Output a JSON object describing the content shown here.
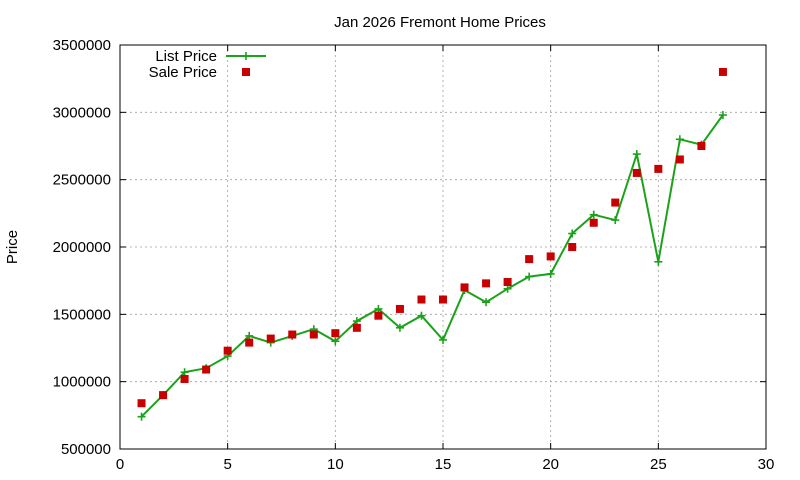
{
  "chart_data": {
    "type": "line",
    "title": "Jan 2026 Fremont Home Prices",
    "xlabel": "",
    "ylabel": "Price",
    "xlim": [
      0,
      30
    ],
    "ylim": [
      500000,
      3500000
    ],
    "xticks": [
      0,
      5,
      10,
      15,
      20,
      25,
      30
    ],
    "yticks": [
      500000,
      1000000,
      1500000,
      2000000,
      2500000,
      3000000,
      3500000
    ],
    "grid": true,
    "legend_position": "top-left",
    "series": [
      {
        "name": "List Price",
        "style": "line+cross",
        "color": "#1aa31a",
        "x": [
          1,
          2,
          3,
          4,
          5,
          6,
          7,
          8,
          9,
          10,
          11,
          12,
          13,
          14,
          15,
          16,
          17,
          18,
          19,
          20,
          21,
          22,
          23,
          24,
          25,
          26,
          27,
          28
        ],
        "y": [
          740000,
          900000,
          1070000,
          1100000,
          1190000,
          1340000,
          1290000,
          1340000,
          1390000,
          1300000,
          1450000,
          1540000,
          1400000,
          1490000,
          1310000,
          1680000,
          1590000,
          1690000,
          1780000,
          1800000,
          2100000,
          2240000,
          2200000,
          2690000,
          1890000,
          2800000,
          2760000,
          2980000
        ]
      },
      {
        "name": "Sale Price",
        "style": "square",
        "color": "#c80000",
        "x": [
          1,
          2,
          3,
          4,
          5,
          6,
          7,
          8,
          9,
          10,
          11,
          12,
          13,
          14,
          15,
          16,
          17,
          18,
          19,
          20,
          21,
          22,
          23,
          24,
          25,
          26,
          27,
          28
        ],
        "y": [
          840000,
          900000,
          1020000,
          1090000,
          1230000,
          1290000,
          1320000,
          1350000,
          1350000,
          1360000,
          1400000,
          1490000,
          1540000,
          1610000,
          1610000,
          1700000,
          1730000,
          1740000,
          1910000,
          1930000,
          2000000,
          2180000,
          2330000,
          2550000,
          2580000,
          2650000,
          2750000,
          3300000
        ]
      }
    ]
  }
}
